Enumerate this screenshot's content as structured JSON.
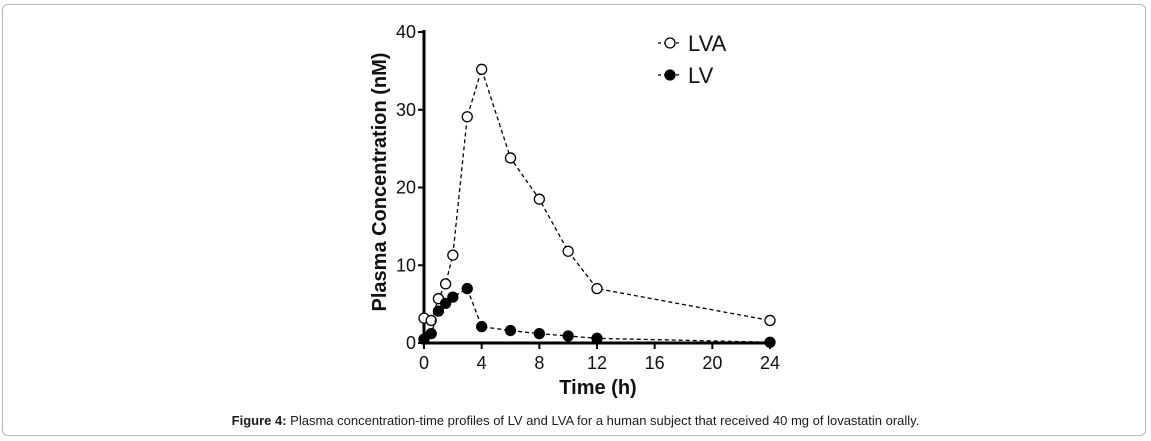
{
  "chart_data": {
    "type": "line",
    "xlabel": "Time (h)",
    "ylabel": "Plasma Concentration (nM)",
    "xlim": [
      0,
      24
    ],
    "ylim": [
      0,
      40
    ],
    "xticks": [
      "0",
      "4",
      "8",
      "12",
      "16",
      "20",
      "24"
    ],
    "yticks": [
      "0",
      "10",
      "20",
      "30",
      "40"
    ],
    "legend_position": "top-right",
    "grid": false,
    "series": [
      {
        "name": "LVA",
        "marker": "open-circle",
        "linestyle": "dashed",
        "color": "#000000",
        "x": [
          0,
          0.5,
          1,
          1.5,
          2,
          3,
          4,
          6,
          8,
          10,
          12,
          24
        ],
        "y": [
          3.2,
          2.9,
          5.7,
          7.6,
          11.3,
          29.1,
          35.2,
          23.8,
          18.5,
          11.8,
          7.0,
          2.9
        ]
      },
      {
        "name": "LV",
        "marker": "filled-circle",
        "linestyle": "dashed",
        "color": "#000000",
        "x": [
          0,
          0.5,
          1,
          1.5,
          2,
          3,
          4,
          6,
          8,
          10,
          12,
          24
        ],
        "y": [
          0.5,
          1.2,
          4.1,
          5.1,
          5.9,
          7.0,
          2.1,
          1.6,
          1.2,
          0.9,
          0.6,
          0.1
        ]
      }
    ]
  },
  "caption": {
    "label": "Figure 4:",
    "text": " Plasma concentration-time profiles of LV and LVA for a human subject that received 40 mg of lovastatin orally."
  }
}
